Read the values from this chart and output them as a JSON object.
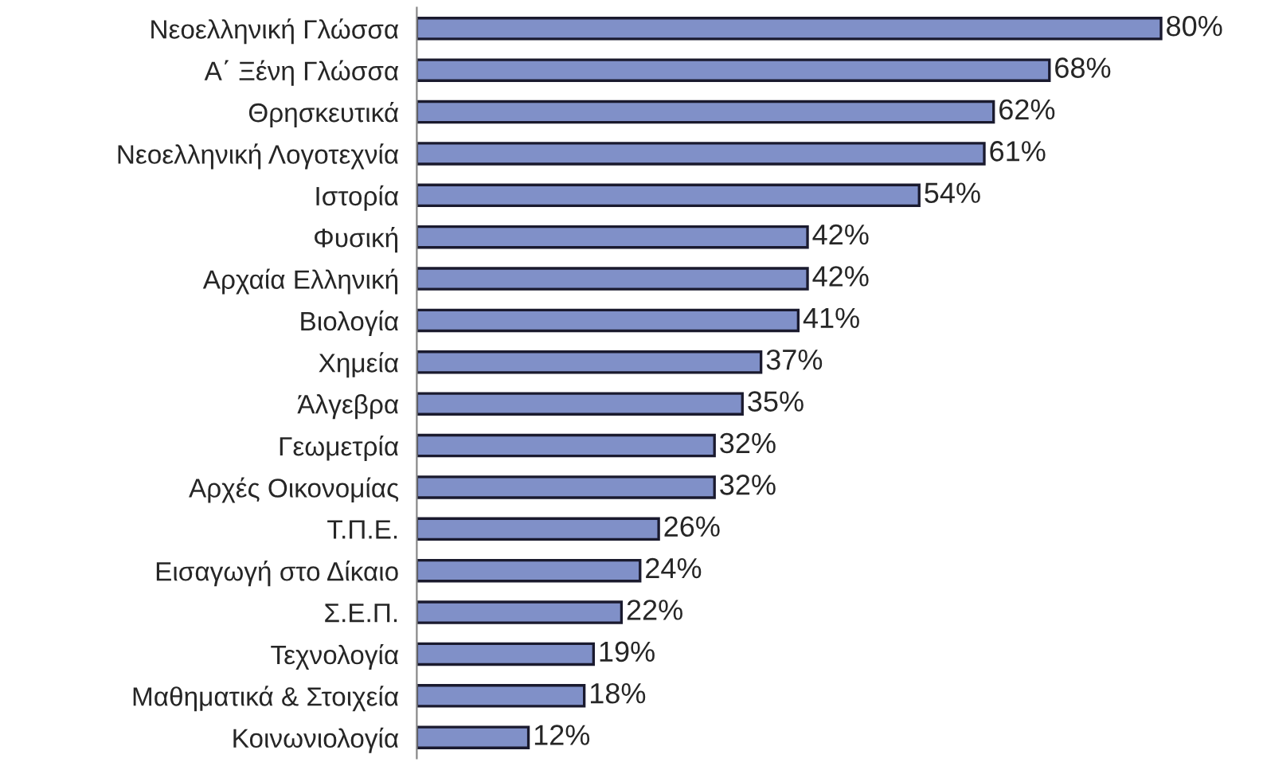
{
  "chart_data": {
    "type": "bar",
    "orientation": "horizontal",
    "categories": [
      "Νεοελληνική Γλώσσα",
      "Α΄ Ξένη Γλώσσα",
      "Θρησκευτικά",
      "Νεοελληνική Λογοτεχνία",
      "Ιστορία",
      "Φυσική",
      "Αρχαία Ελληνική",
      "Βιολογία",
      "Χημεία",
      "Άλγεβρα",
      "Γεωμετρία",
      "Αρχές Οικονομίας",
      "Τ.Π.Ε.",
      "Εισαγωγή στο Δίκαιο",
      "Σ.Ε.Π.",
      "Τεχνολογία",
      "Μαθηματικά & Στοιχεία",
      "Κοινωνιολογία"
    ],
    "values": [
      80,
      68,
      62,
      61,
      54,
      42,
      42,
      41,
      37,
      35,
      32,
      32,
      26,
      24,
      22,
      19,
      18,
      12
    ],
    "value_labels": [
      "80%",
      "68%",
      "62%",
      "61%",
      "54%",
      "42%",
      "42%",
      "41%",
      "37%",
      "35%",
      "32%",
      "32%",
      "26%",
      "24%",
      "22%",
      "19%",
      "18%",
      "12%"
    ],
    "color": "#8090c8",
    "grid": false,
    "legend": false
  }
}
